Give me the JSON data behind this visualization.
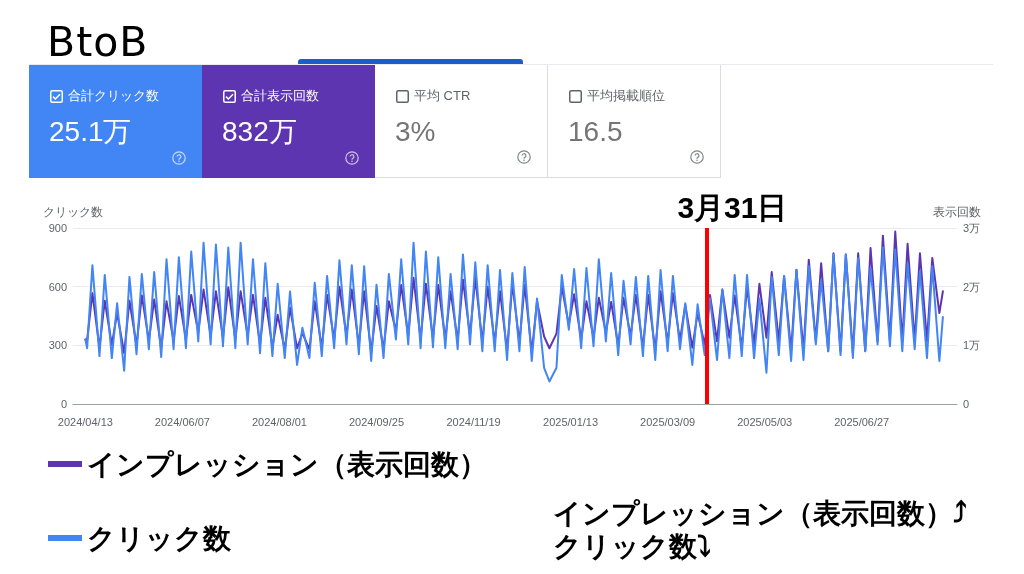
{
  "chart_data": [
    {
      "type": "other",
      "title": "BtoB",
      "categories": [
        "合計クリック数",
        "合計表示回数",
        "平均 CTR",
        "平均掲載順位"
      ],
      "value_labels": [
        "25.1万",
        "832万",
        "3%",
        "16.5"
      ],
      "colors": [
        "#4285f4",
        "#5e35b1",
        "#ffffff",
        "#ffffff"
      ]
    },
    {
      "type": "line",
      "x": [
        "2024-04-13",
        "2024-04-14",
        "2024-04-17",
        "2024-04-21",
        "2024-04-24",
        "2024-04-28",
        "2024-05-01",
        "2024-05-05",
        "2024-05-08",
        "2024-05-12",
        "2024-05-15",
        "2024-05-19",
        "2024-05-22",
        "2024-05-26",
        "2024-05-29",
        "2024-06-02",
        "2024-06-05",
        "2024-06-09",
        "2024-06-12",
        "2024-06-16",
        "2024-06-19",
        "2024-06-23",
        "2024-06-26",
        "2024-06-30",
        "2024-07-03",
        "2024-07-07",
        "2024-07-10",
        "2024-07-14",
        "2024-07-17",
        "2024-07-21",
        "2024-07-24",
        "2024-07-28",
        "2024-07-31",
        "2024-08-04",
        "2024-08-07",
        "2024-08-11",
        "2024-08-14",
        "2024-08-18",
        "2024-08-21",
        "2024-08-25",
        "2024-08-28",
        "2024-09-01",
        "2024-09-04",
        "2024-09-08",
        "2024-09-11",
        "2024-09-15",
        "2024-09-18",
        "2024-09-22",
        "2024-09-25",
        "2024-09-29",
        "2024-10-02",
        "2024-10-06",
        "2024-10-09",
        "2024-10-13",
        "2024-10-16",
        "2024-10-20",
        "2024-10-23",
        "2024-10-27",
        "2024-10-30",
        "2024-11-03",
        "2024-11-06",
        "2024-11-10",
        "2024-11-13",
        "2024-11-17",
        "2024-11-20",
        "2024-11-24",
        "2024-11-27",
        "2024-12-01",
        "2024-12-04",
        "2024-12-08",
        "2024-12-11",
        "2024-12-15",
        "2024-12-18",
        "2024-12-22",
        "2024-12-25",
        "2024-12-29",
        "2025-01-01",
        "2025-01-05",
        "2025-01-08",
        "2025-01-12",
        "2025-01-15",
        "2025-01-19",
        "2025-01-22",
        "2025-01-26",
        "2025-01-29",
        "2025-02-02",
        "2025-02-05",
        "2025-02-09",
        "2025-02-12",
        "2025-02-16",
        "2025-02-19",
        "2025-02-23",
        "2025-02-26",
        "2025-03-02",
        "2025-03-05",
        "2025-03-09",
        "2025-03-12",
        "2025-03-16",
        "2025-03-19",
        "2025-03-23",
        "2025-03-26",
        "2025-03-30",
        "2025-04-02",
        "2025-04-06",
        "2025-04-09",
        "2025-04-13",
        "2025-04-16",
        "2025-04-20",
        "2025-04-23",
        "2025-04-27",
        "2025-04-30",
        "2025-05-04",
        "2025-05-07",
        "2025-05-11",
        "2025-05-14",
        "2025-05-18",
        "2025-05-21",
        "2025-05-25",
        "2025-05-28",
        "2025-06-01",
        "2025-06-04",
        "2025-06-08",
        "2025-06-11",
        "2025-06-15",
        "2025-06-18",
        "2025-06-22",
        "2025-06-25",
        "2025-06-29",
        "2025-07-02",
        "2025-07-06",
        "2025-07-09",
        "2025-07-13",
        "2025-07-16",
        "2025-07-20",
        "2025-07-23",
        "2025-07-27",
        "2025-07-30",
        "2025-08-03",
        "2025-08-06",
        "2025-08-10",
        "2025-08-12"
      ],
      "series": [
        {
          "name": "インプレッション（表示回数）",
          "color": "#5e35b1",
          "axis": "y2",
          "values": [
            1.1,
            1.09,
            1.89,
            0.96,
            1.76,
            1.01,
            1.55,
            0.87,
            1.76,
            1.0,
            1.85,
            1.08,
            1.78,
            0.95,
            1.75,
            1.08,
            1.84,
            1.1,
            1.86,
            1.22,
            1.95,
            1.16,
            1.92,
            1.13,
            1.99,
            1.1,
            1.92,
            1.16,
            1.86,
            1.02,
            1.81,
            0.96,
            1.52,
            0.93,
            1.64,
            0.95,
            1.21,
            0.93,
            1.75,
            0.96,
            1.86,
            1.1,
            2.0,
            1.16,
            1.95,
            1.0,
            1.92,
            0.88,
            1.67,
            0.93,
            1.75,
            1.25,
            2.03,
            1.16,
            2.15,
            1.1,
            2.05,
            1.12,
            2.03,
            1.1,
            1.92,
            1.08,
            2.12,
            1.17,
            2.15,
            1.05,
            2.0,
            1.05,
            1.92,
            0.91,
            2.05,
            1.05,
            2.03,
            0.88,
            1.75,
            1.15,
            0.95,
            1.2,
            2.0,
            1.35,
            1.87,
            1.1,
            1.75,
            1.13,
            1.81,
            1.22,
            1.74,
            0.99,
            1.81,
            1.16,
            1.86,
            0.96,
            1.86,
            0.91,
            1.92,
            1.05,
            1.89,
            1.08,
            1.69,
            0.96,
            1.55,
            1.01,
            1.86,
            1.07,
            1.95,
            1.13,
            1.85,
            0.96,
            2.0,
            1.01,
            2.05,
            1.13,
            2.25,
            1.07,
            2.18,
            0.9,
            2.29,
            0.9,
            2.46,
            1.07,
            2.4,
            0.9,
            2.57,
            0.9,
            2.55,
            0.87,
            2.57,
            0.9,
            2.66,
            1.07,
            2.87,
            1.07,
            2.94,
            1.07,
            2.73,
            1.07,
            2.57,
            1.07,
            2.49,
            1.55,
            1.92
          ]
        },
        {
          "name": "クリック数",
          "color": "#4285f4",
          "values": [
            330,
            285,
            710,
            245,
            660,
            235,
            515,
            170,
            650,
            255,
            665,
            280,
            675,
            240,
            740,
            280,
            750,
            285,
            780,
            320,
            825,
            305,
            815,
            295,
            800,
            285,
            825,
            305,
            740,
            260,
            720,
            245,
            615,
            235,
            575,
            200,
            390,
            235,
            620,
            245,
            655,
            285,
            735,
            305,
            710,
            255,
            705,
            220,
            610,
            235,
            665,
            330,
            740,
            305,
            825,
            285,
            780,
            290,
            750,
            285,
            665,
            280,
            765,
            305,
            725,
            270,
            710,
            270,
            685,
            225,
            670,
            270,
            700,
            220,
            540,
            185,
            115,
            185,
            660,
            380,
            690,
            285,
            695,
            295,
            740,
            320,
            670,
            250,
            630,
            305,
            650,
            245,
            655,
            225,
            685,
            270,
            655,
            280,
            515,
            200,
            510,
            250,
            540,
            225,
            585,
            235,
            660,
            245,
            660,
            235,
            540,
            160,
            650,
            250,
            655,
            220,
            685,
            225,
            705,
            305,
            635,
            270,
            765,
            250,
            765,
            235,
            745,
            270,
            695,
            305,
            800,
            295,
            790,
            270,
            720,
            280,
            680,
            235,
            705,
            220,
            445
          ]
        }
      ],
      "ylabel": "クリック数",
      "y2label": "表示回数",
      "xlim": [
        "2024-04-06",
        "2025-08-20"
      ],
      "xticks": [
        {
          "value": "2024-04-13",
          "label": "2024/04/13"
        },
        {
          "value": "2024-06-07",
          "label": "2024/06/07"
        },
        {
          "value": "2024-08-01",
          "label": "2024/08/01"
        },
        {
          "value": "2024-09-25",
          "label": "2024/09/25"
        },
        {
          "value": "2024-11-19",
          "label": "2024/11/19"
        },
        {
          "value": "2025-01-13",
          "label": "2025/01/13"
        },
        {
          "value": "2025-03-09",
          "label": "2025/03/09"
        },
        {
          "value": "2025-05-03",
          "label": "2025/05/03"
        },
        {
          "value": "2025-06-27",
          "label": "2025/06/27"
        }
      ],
      "ylim": [
        0,
        900
      ],
      "yticks": [
        0,
        300,
        600,
        900
      ],
      "y2lim": [
        0,
        3
      ],
      "y2ticks": [
        0,
        {
          "value": 1,
          "label": "1万"
        },
        {
          "value": 2,
          "label": "2万"
        },
        {
          "value": 3,
          "label": "3万"
        }
      ],
      "grid": "y",
      "legend": "bottom left",
      "marker": "none",
      "ref_lines": [
        {
          "axis": "x",
          "value": "2025-03-31",
          "label": "3月31日",
          "color": "#ff0000"
        }
      ],
      "annotations": [
        "インプレッション（表示回数）⤴",
        "クリック数⤵"
      ]
    }
  ]
}
